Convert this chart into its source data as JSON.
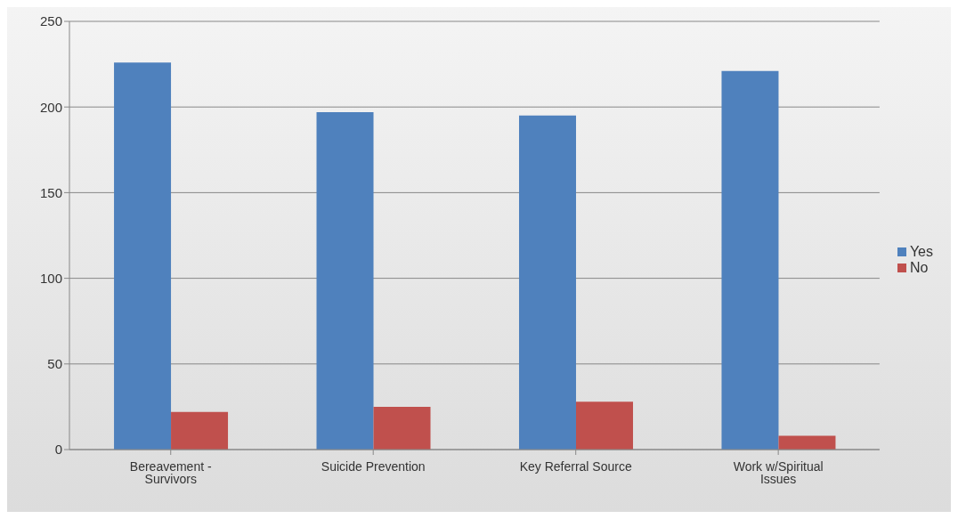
{
  "chart_data": {
    "type": "bar",
    "categories": [
      "Bereavement - Survivors",
      "Suicide Prevention",
      "Key Referral  Source",
      "Work w/Spiritual Issues"
    ],
    "series": [
      {
        "name": "Yes",
        "color": "#4f81bd",
        "values": [
          226,
          197,
          195,
          221
        ]
      },
      {
        "name": "No",
        "color": "#c0504d",
        "values": [
          22,
          25,
          28,
          8
        ]
      }
    ],
    "ylim": [
      0,
      250
    ],
    "yticks": [
      0,
      50,
      100,
      150,
      200,
      250
    ],
    "grid": "y",
    "legend": "right"
  }
}
